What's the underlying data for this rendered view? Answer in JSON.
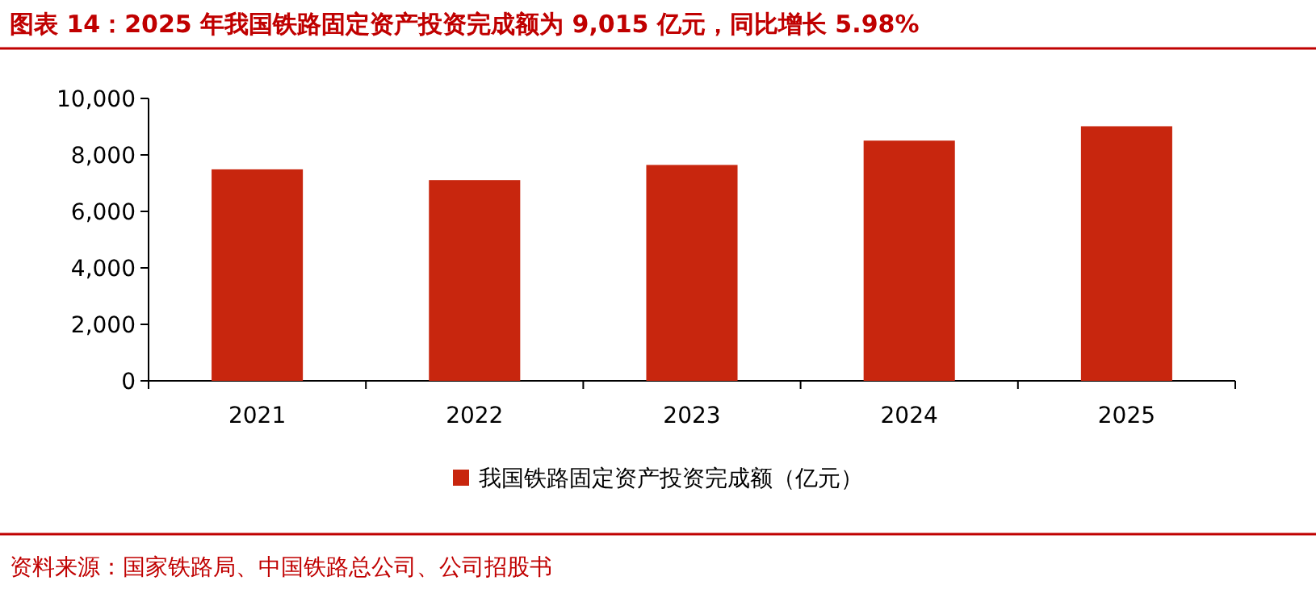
{
  "chart_data": {
    "type": "bar",
    "title": "图表 14：2025 年我国铁路固定资产投资完成额为 9,015 亿元，同比增长 5.98%",
    "categories": [
      "2021",
      "2022",
      "2023",
      "2024",
      "2025"
    ],
    "series": [
      {
        "name": "我国铁路固定资产投资完成额（亿元）",
        "color": "#c8260e",
        "values": [
          7489,
          7109,
          7645,
          8506,
          9015
        ]
      }
    ],
    "ylim": [
      0,
      10000
    ],
    "yticks": [
      0,
      {
        "value": 2000,
        "label": "2,000"
      },
      {
        "value": 4000,
        "label": "4,000"
      },
      {
        "value": 6000,
        "label": "6,000"
      },
      {
        "value": 8000,
        "label": "8,000"
      },
      {
        "value": 10000,
        "label": "10,000"
      }
    ],
    "legend": "bottom",
    "annotations": [
      "资料来源：国家铁路局、中国铁路总公司、公司招股书"
    ]
  }
}
